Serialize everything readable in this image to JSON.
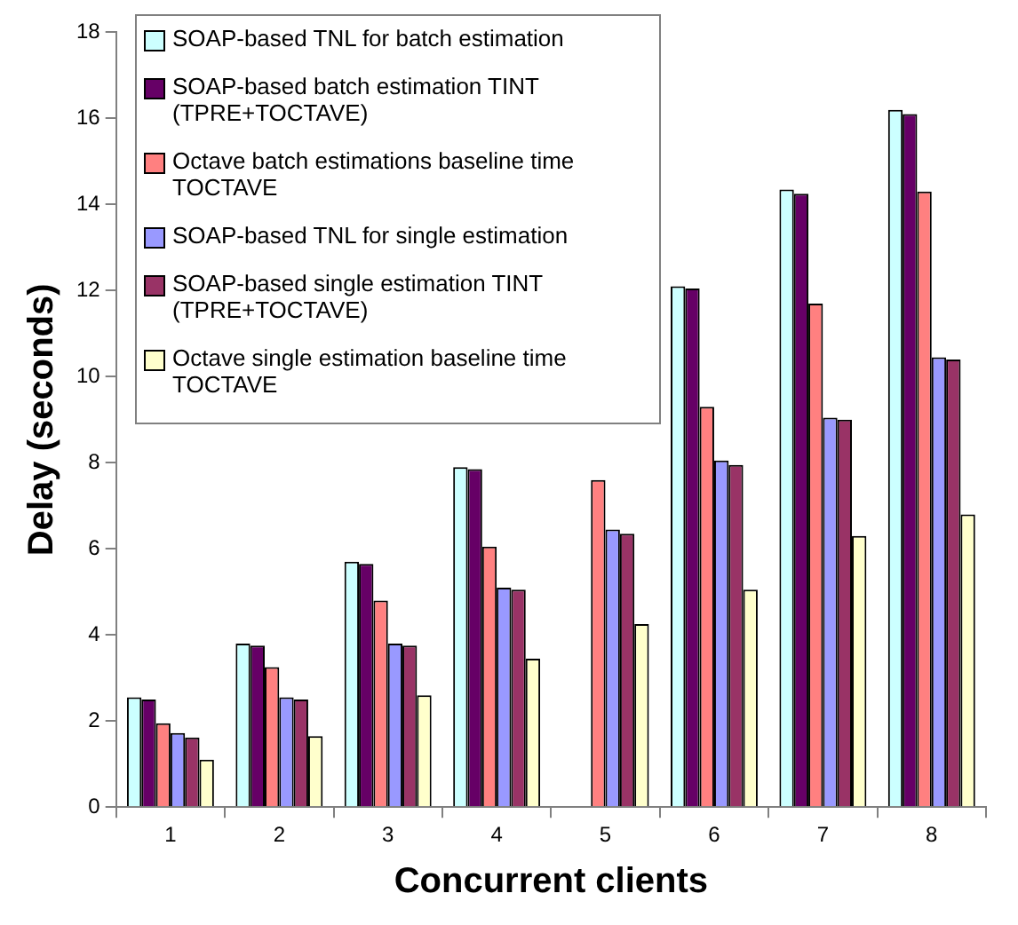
{
  "chart_data": {
    "type": "bar",
    "xlabel": "Concurrent clients",
    "ylabel": "Delay (seconds)",
    "categories": [
      "1",
      "2",
      "3",
      "4",
      "5",
      "6",
      "7",
      "8"
    ],
    "series": [
      {
        "name": "SOAP-based TNL for batch estimation",
        "color": "#ccffff",
        "values": [
          2.55,
          3.8,
          5.7,
          7.9,
          null,
          12.1,
          14.35,
          16.2
        ]
      },
      {
        "name": "SOAP-based batch estimation TINT (TPRE+TOCTAVE)",
        "color": "#660066",
        "values": [
          2.5,
          3.75,
          5.65,
          7.85,
          null,
          12.05,
          14.25,
          16.1
        ]
      },
      {
        "name": "Octave batch estimations baseline time TOCTAVE",
        "color": "#ff8080",
        "values": [
          1.95,
          3.25,
          4.8,
          6.05,
          7.6,
          9.3,
          11.7,
          14.3
        ]
      },
      {
        "name": "SOAP-based TNL for single estimation",
        "color": "#9999ff",
        "values": [
          1.72,
          2.55,
          3.8,
          5.1,
          6.45,
          8.05,
          9.05,
          10.45
        ]
      },
      {
        "name": "SOAP-based single estimation TINT (TPRE+TOCTAVE)",
        "color": "#993366",
        "values": [
          1.62,
          2.5,
          3.75,
          5.05,
          6.35,
          7.95,
          9.0,
          10.4
        ]
      },
      {
        "name": "Octave single estimation baseline time TOCTAVE",
        "color": "#ffffcc",
        "values": [
          1.1,
          1.65,
          2.6,
          3.45,
          4.25,
          5.05,
          6.3,
          6.8
        ]
      }
    ],
    "ylim": [
      0,
      18
    ],
    "yticks": [
      0,
      2,
      4,
      6,
      8,
      10,
      12,
      14,
      16,
      18
    ],
    "grid": false,
    "legend": "top left"
  }
}
